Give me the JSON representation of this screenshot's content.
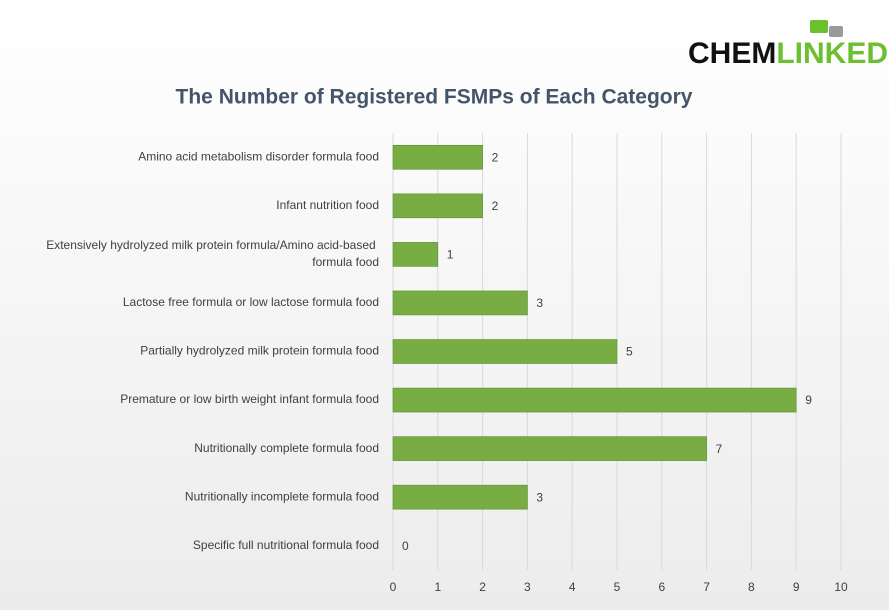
{
  "logo": {
    "part1": "CHEM",
    "part2": "LINKED"
  },
  "chart_data": {
    "type": "bar",
    "orientation": "horizontal",
    "title": "The Number of Registered FSMPs of Each Category",
    "categories": [
      "Amino acid metabolism disorder formula food",
      "Infant nutrition food",
      "Extensively hydrolyzed milk protein formula/Amino acid-based formula food",
      "Lactose free formula or low lactose formula food",
      "Partially hydrolyzed milk protein formula food",
      "Premature or low birth weight infant formula food",
      "Nutritionally complete formula food",
      "Nutritionally incomplete formula food",
      "Specific full nutritional formula food"
    ],
    "values": [
      2,
      2,
      1,
      3,
      5,
      9,
      7,
      3,
      0
    ],
    "color": "#77ad42",
    "xlim": [
      0,
      10
    ],
    "xticks": [
      0,
      1,
      2,
      3,
      4,
      5,
      6,
      7,
      8,
      9,
      10
    ],
    "grid": true
  }
}
